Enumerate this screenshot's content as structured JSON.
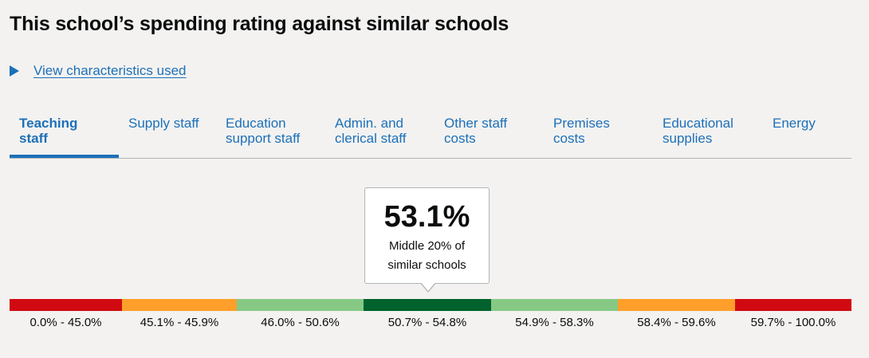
{
  "page": {
    "title": "This school’s spending rating against similar schools",
    "details_link": "View characteristics used"
  },
  "tabs": [
    {
      "label_line1": "Teaching",
      "label_line2": "staff",
      "active": true
    },
    {
      "label_line1": "Supply staff",
      "label_line2": ""
    },
    {
      "label_line1": "Education",
      "label_line2": "support staff"
    },
    {
      "label_line1": "Admin. and",
      "label_line2": "clerical staff"
    },
    {
      "label_line1": "Other staff",
      "label_line2": "costs"
    },
    {
      "label_line1": "Premises",
      "label_line2": "costs"
    },
    {
      "label_line1": "Educational",
      "label_line2": "supplies"
    },
    {
      "label_line1": "Energy",
      "label_line2": ""
    }
  ],
  "rating": {
    "value": "53.1%",
    "description": "Middle 20% of similar schools"
  },
  "bands": [
    {
      "label": "0.0% - 45.0%",
      "color": "#d10a11",
      "min": 0.0,
      "max": 45.0
    },
    {
      "label": "45.1% - 45.9%",
      "color": "#fd9f2a",
      "min": 45.1,
      "max": 45.9
    },
    {
      "label": "46.0% - 50.6%",
      "color": "#85c985",
      "min": 46.0,
      "max": 50.6
    },
    {
      "label": "50.7% - 54.8%",
      "color": "#00622c",
      "min": 50.7,
      "max": 54.8
    },
    {
      "label": "54.9% - 58.3%",
      "color": "#85c985",
      "min": 54.9,
      "max": 58.3
    },
    {
      "label": "58.4% - 59.6%",
      "color": "#fd9f2a",
      "min": 58.4,
      "max": 59.6
    },
    {
      "label": "59.7% - 100.0%",
      "color": "#d10a11",
      "min": 59.7,
      "max": 100.0
    }
  ]
}
